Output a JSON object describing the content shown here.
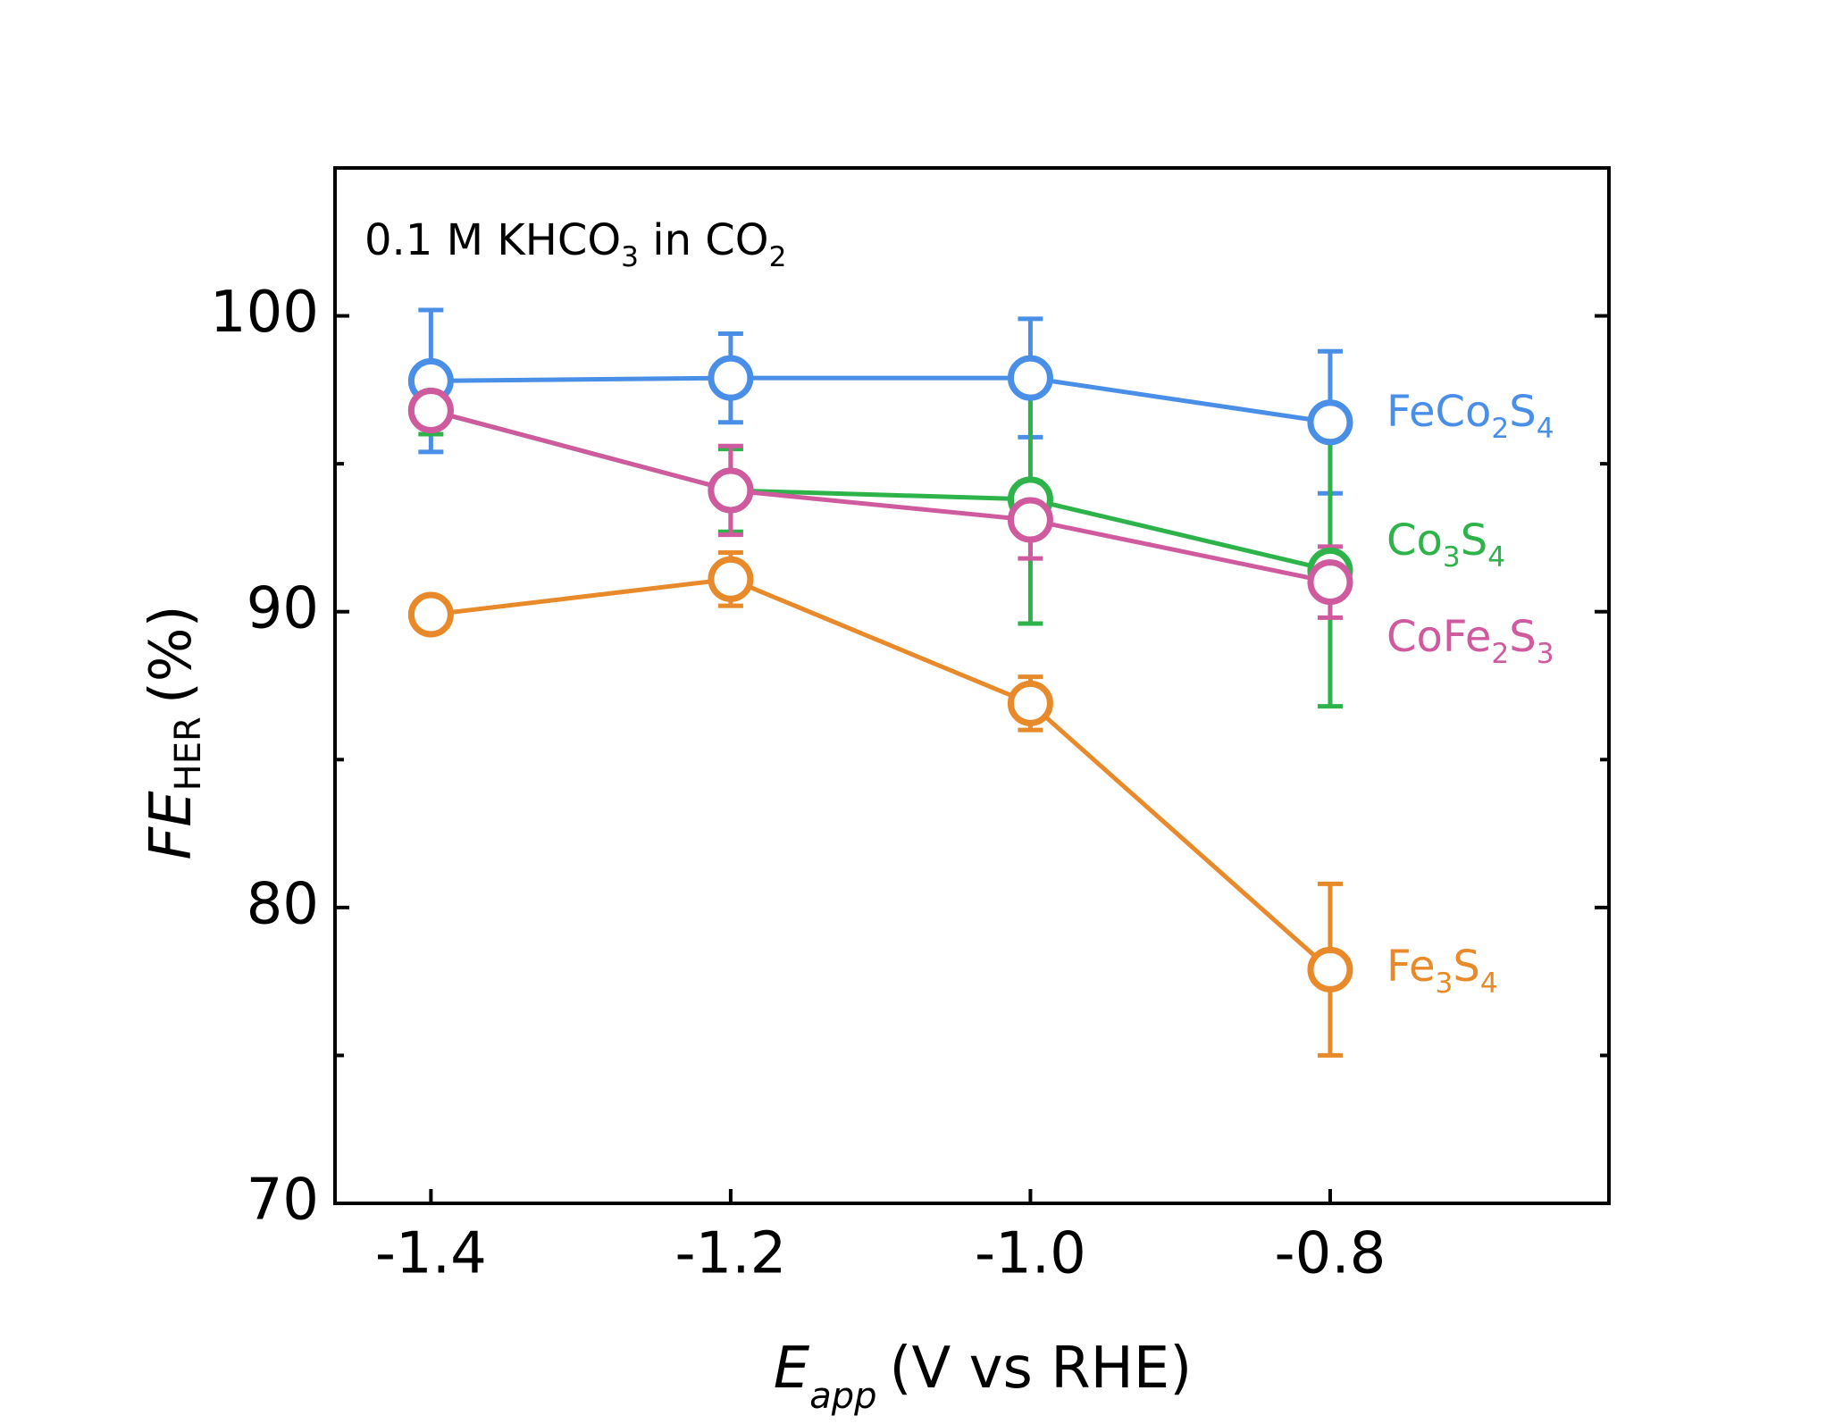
{
  "chart_data": {
    "type": "line",
    "annotation": "0.1 M KHCO3 in CO2",
    "xlabel": {
      "main": "E",
      "sub": "app",
      "unit": "(V vs RHE)"
    },
    "ylabel": {
      "main": "FE",
      "sub": "HER",
      "unit": "(%)"
    },
    "x": [
      -1.4,
      -1.2,
      -1.0,
      -0.8
    ],
    "xlim": [
      -1.464,
      -0.614
    ],
    "xticks": [
      -1.4,
      -1.2,
      {
        "value": -1.0,
        "label": "-1.0"
      },
      -0.8
    ],
    "ylim": [
      70,
      105
    ],
    "yticks": [
      70,
      80,
      90,
      100
    ],
    "minor_yticks": [
      75,
      85,
      95
    ],
    "grid": false,
    "series": [
      {
        "name": "FeCo2S4",
        "color": "#4a8fe7",
        "values": [
          97.8,
          97.9,
          97.9,
          96.4
        ],
        "errors": [
          2.4,
          1.5,
          2.0,
          2.4
        ]
      },
      {
        "name": "Co3S4",
        "color": "#2db34a",
        "values": [
          96.8,
          94.1,
          93.8,
          91.4
        ],
        "errors": [
          0.8,
          1.4,
          4.2,
          4.6
        ]
      },
      {
        "name": "CoFe2S3",
        "color": "#d05a9e",
        "values": [
          96.8,
          94.1,
          93.1,
          91.0
        ],
        "errors": [
          0.5,
          1.5,
          1.3,
          1.2
        ]
      },
      {
        "name": "Fe3S4",
        "color": "#e8892a",
        "values": [
          89.9,
          91.1,
          86.9,
          77.9
        ],
        "errors": [
          0.3,
          0.9,
          0.9,
          2.9
        ]
      }
    ]
  }
}
